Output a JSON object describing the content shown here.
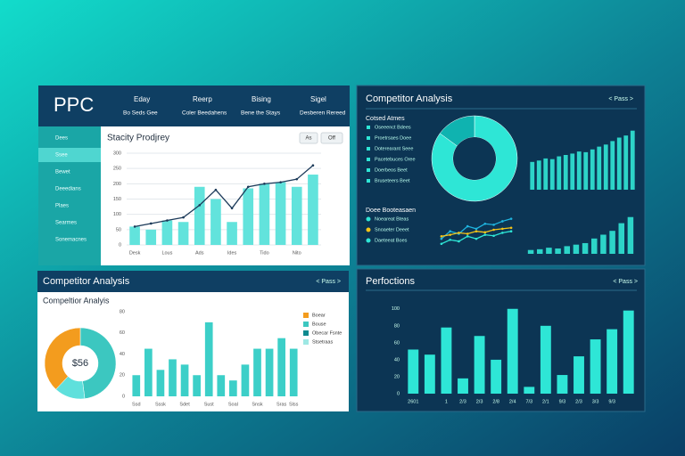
{
  "header": {
    "title": "PPC",
    "nav": [
      {
        "label": "Eday",
        "sub": "Bo Seds Gee"
      },
      {
        "label": "Reerp",
        "sub": "Coler Beedahens"
      },
      {
        "label": "Bising",
        "sub": "Bene the Stays"
      },
      {
        "label": "Sigel",
        "sub": "Desberen Rereed"
      }
    ]
  },
  "sidebar": [
    "Dees",
    "Ssee",
    "Bewet",
    "Deeedians",
    "Plaes",
    "Searmes",
    "Sonemacnes"
  ],
  "panels": {
    "top_left": {
      "buttons": [
        "As",
        "Off"
      ]
    },
    "top_right": {
      "title": "Competitor Analysis",
      "pager": "< Pass >",
      "list_title": "Cotsed Atmes",
      "list": [
        "Oseeenct Bdees",
        "Proetrsaes Doee",
        "Doterearant Seee",
        "Pacetebuces Oree",
        "Doerbeos Beet",
        "Bruseteers Beet"
      ],
      "list2_title": "Doee Booteasaen",
      "list2": [
        "Noeareat Bteas",
        "Snoaeter Deeet",
        "Daeteeat Boes"
      ]
    },
    "bottom_left": {
      "title": "Competitor Analysis",
      "subtitle": "Compeltior Analyis",
      "pager": "< Pass >"
    },
    "bottom_right": {
      "title": "Perfoctions",
      "pager": "< Pass >"
    }
  },
  "chart_data": [
    {
      "type": "bar",
      "title": "Stacity Prodjrey",
      "categories": [
        "Desk",
        null,
        "Lous",
        null,
        "Ads",
        null,
        "Ides",
        null,
        "Tido",
        null,
        "Nito",
        null
      ],
      "series": [
        {
          "color": "#62e3dc",
          "values": [
            60,
            50,
            80,
            75,
            190,
            150,
            75,
            185,
            200,
            205,
            190,
            230
          ]
        },
        {
          "type": "line",
          "color": "#1d3b5a",
          "values": [
            60,
            70,
            80,
            90,
            130,
            180,
            120,
            190,
            200,
            205,
            215,
            260
          ]
        }
      ],
      "ylim": [
        0,
        300
      ],
      "yticks": [
        0,
        50,
        100,
        150,
        200,
        250,
        300
      ],
      "grid": true
    },
    {
      "type": "pie",
      "donut": true,
      "values": [
        85,
        15
      ],
      "colors": [
        "#2ee6d6",
        "#0fb3b0"
      ]
    },
    {
      "type": "bar",
      "color": "#2dd4c8",
      "values": [
        40,
        42,
        45,
        44,
        48,
        50,
        52,
        55,
        54,
        58,
        62,
        65,
        70,
        75,
        78,
        85
      ],
      "ylim": [
        0,
        100
      ]
    },
    {
      "type": "line",
      "series": [
        {
          "color": "#1fb5e0",
          "values": [
            30,
            45,
            40,
            55,
            50,
            60,
            58,
            65,
            70
          ]
        },
        {
          "color": "#f5c518",
          "values": [
            35,
            38,
            42,
            40,
            45,
            43,
            48,
            50,
            52
          ]
        },
        {
          "color": "#2ee6d6",
          "values": [
            20,
            28,
            25,
            35,
            30,
            38,
            36,
            42,
            45
          ]
        }
      ],
      "ylim": [
        0,
        80
      ]
    },
    {
      "type": "bar",
      "color": "#2dd4c8",
      "values": [
        5,
        6,
        8,
        7,
        10,
        12,
        14,
        20,
        25,
        30,
        40,
        48
      ],
      "ylim": [
        0,
        50
      ]
    },
    {
      "type": "pie",
      "donut": true,
      "center_label": "$56",
      "values": [
        48,
        14,
        38
      ],
      "colors": [
        "#3cc7c0",
        "#5fe0dc",
        "#f39c1e"
      ]
    },
    {
      "type": "bar",
      "color": "#3ccfc8",
      "categories": [
        "Ssd",
        null,
        "Sssk",
        null,
        "Sdet",
        null,
        "Sust",
        null,
        "Soal",
        null,
        "Snsk",
        null,
        "Sras",
        "Slss"
      ],
      "values": [
        20,
        45,
        25,
        35,
        30,
        20,
        70,
        20,
        15,
        30,
        45,
        45,
        55,
        45
      ],
      "ylim": [
        0,
        80
      ],
      "yticks": [
        0,
        20,
        40,
        60,
        80
      ],
      "legend": [
        {
          "name": "Boear",
          "color": "#f39c1e"
        },
        {
          "name": "Bouse",
          "color": "#3cc7c0"
        },
        {
          "name": "Obecar Fsnte",
          "color": "#0e8a8f"
        },
        {
          "name": "Stsetraas",
          "color": "#9ee8e4"
        }
      ]
    },
    {
      "type": "bar",
      "color": "#2ee6d6",
      "categories": [
        "2601",
        null,
        "1",
        "2/3",
        "2/3",
        "2/8",
        "2/4",
        "7/3",
        "2/1",
        "9/3",
        "2/3",
        "3/3",
        "9/3",
        null
      ],
      "values": [
        52,
        46,
        78,
        18,
        68,
        40,
        100,
        8,
        80,
        22,
        44,
        64,
        76,
        98
      ],
      "ylim": [
        0,
        105
      ],
      "yticks": [
        0,
        20,
        40,
        60,
        80,
        100
      ]
    }
  ]
}
